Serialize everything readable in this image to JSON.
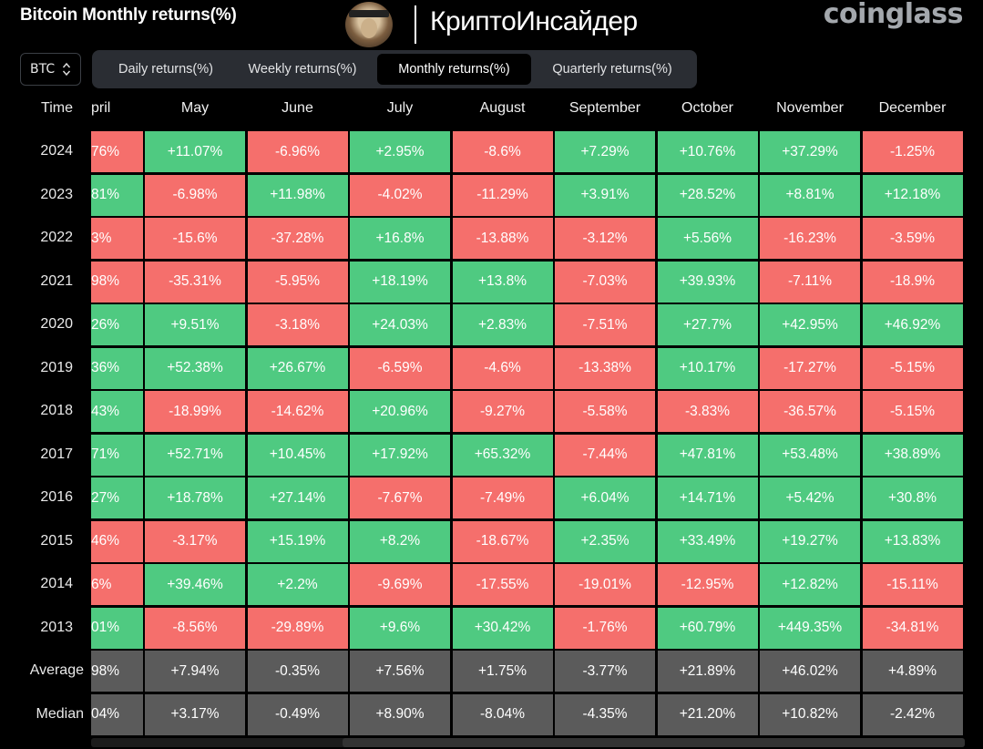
{
  "header": {
    "title": "Bitcoin Monthly returns(%)",
    "brand_name": "КриптоИнсайдер",
    "avatar_text": "КриптоИнсайдер",
    "logo": "coinglass"
  },
  "symbol": {
    "value": "BTC",
    "icon": "chevron-updown-icon"
  },
  "tabs": [
    {
      "label": "Daily returns(%)",
      "active": false
    },
    {
      "label": "Weekly returns(%)",
      "active": false
    },
    {
      "label": "Monthly returns(%)",
      "active": true
    },
    {
      "label": "Quarterly returns(%)",
      "active": false
    }
  ],
  "time_header": "Time",
  "columns": [
    "pril",
    "May",
    "June",
    "July",
    "August",
    "September",
    "October",
    "November",
    "December"
  ],
  "rows": [
    {
      "label": "2024",
      "values": [
        "76%",
        "+11.07%",
        "-6.96%",
        "+2.95%",
        "-8.6%",
        "+7.29%",
        "+10.76%",
        "+37.29%",
        "-1.25%"
      ],
      "tone": [
        "neg",
        "pos",
        "neg",
        "pos",
        "neg",
        "pos",
        "pos",
        "pos",
        "neg"
      ]
    },
    {
      "label": "2023",
      "values": [
        "81%",
        "-6.98%",
        "+11.98%",
        "-4.02%",
        "-11.29%",
        "+3.91%",
        "+28.52%",
        "+8.81%",
        "+12.18%"
      ],
      "tone": [
        "pos",
        "neg",
        "pos",
        "neg",
        "neg",
        "pos",
        "pos",
        "pos",
        "pos"
      ]
    },
    {
      "label": "2022",
      "values": "3%|-15.6%|-37.28%|+16.8%|-13.88%|-3.12%|+5.56%|-16.23%|-3.59%",
      "tone": [
        "neg",
        "neg",
        "neg",
        "pos",
        "neg",
        "neg",
        "pos",
        "neg",
        "neg"
      ]
    },
    {
      "label": "2021",
      "values": [
        "98%",
        "-35.31%",
        "-5.95%",
        "+18.19%",
        "+13.8%",
        "-7.03%",
        "+39.93%",
        "-7.11%",
        "-18.9%"
      ],
      "tone": [
        "neg",
        "neg",
        "neg",
        "pos",
        "pos",
        "neg",
        "pos",
        "neg",
        "neg"
      ]
    },
    {
      "label": "2020",
      "values": [
        "26%",
        "+9.51%",
        "-3.18%",
        "+24.03%",
        "+2.83%",
        "-7.51%",
        "+27.7%",
        "+42.95%",
        "+46.92%"
      ],
      "tone": [
        "pos",
        "pos",
        "neg",
        "pos",
        "pos",
        "neg",
        "pos",
        "pos",
        "pos"
      ]
    },
    {
      "label": "2019",
      "values": [
        "36%",
        "+52.38%",
        "+26.67%",
        "-6.59%",
        "-4.6%",
        "-13.38%",
        "+10.17%",
        "-17.27%",
        "-5.15%"
      ],
      "tone": [
        "pos",
        "pos",
        "pos",
        "neg",
        "neg",
        "neg",
        "pos",
        "neg",
        "neg"
      ]
    },
    {
      "label": "2018",
      "values": [
        "43%",
        "-18.99%",
        "-14.62%",
        "+20.96%",
        "-9.27%",
        "-5.58%",
        "-3.83%",
        "-36.57%",
        "-5.15%"
      ],
      "tone": [
        "pos",
        "neg",
        "neg",
        "pos",
        "neg",
        "neg",
        "neg",
        "neg",
        "neg"
      ]
    },
    {
      "label": "2017",
      "values": [
        "71%",
        "+52.71%",
        "+10.45%",
        "+17.92%",
        "+65.32%",
        "-7.44%",
        "+47.81%",
        "+53.48%",
        "+38.89%"
      ],
      "tone": [
        "pos",
        "pos",
        "pos",
        "pos",
        "pos",
        "neg",
        "pos",
        "pos",
        "pos"
      ]
    },
    {
      "label": "2016",
      "values": [
        "27%",
        "+18.78%",
        "+27.14%",
        "-7.67%",
        "-7.49%",
        "+6.04%",
        "+14.71%",
        "+5.42%",
        "+30.8%"
      ],
      "tone": [
        "pos",
        "pos",
        "pos",
        "neg",
        "neg",
        "pos",
        "pos",
        "pos",
        "pos"
      ]
    },
    {
      "label": "2015",
      "values": [
        "46%",
        "-3.17%",
        "+15.19%",
        "+8.2%",
        "-18.67%",
        "+2.35%",
        "+33.49%",
        "+19.27%",
        "+13.83%"
      ],
      "tone": [
        "neg",
        "neg",
        "pos",
        "pos",
        "neg",
        "pos",
        "pos",
        "pos",
        "pos"
      ]
    },
    {
      "label": "2014",
      "values": [
        "6%",
        "+39.46%",
        "+2.2%",
        "-9.69%",
        "-17.55%",
        "-19.01%",
        "-12.95%",
        "+12.82%",
        "-15.11%"
      ],
      "tone": [
        "neg",
        "pos",
        "pos",
        "neg",
        "neg",
        "neg",
        "neg",
        "pos",
        "neg"
      ]
    },
    {
      "label": "2013",
      "values": [
        "01%",
        "-8.56%",
        "-29.89%",
        "+9.6%",
        "+30.42%",
        "-1.76%",
        "+60.79%",
        "+449.35%",
        "-34.81%"
      ],
      "tone": [
        "pos",
        "neg",
        "neg",
        "pos",
        "pos",
        "neg",
        "pos",
        "pos",
        "neg"
      ]
    },
    {
      "label": "Average",
      "values": [
        "98%",
        "+7.94%",
        "-0.35%",
        "+7.56%",
        "+1.75%",
        "-3.77%",
        "+21.89%",
        "+46.02%",
        "+4.89%"
      ],
      "tone": [
        "stat",
        "stat",
        "stat",
        "stat",
        "stat",
        "stat",
        "stat",
        "stat",
        "stat"
      ]
    },
    {
      "label": "Median",
      "values": [
        "04%",
        "+3.17%",
        "-0.49%",
        "+8.90%",
        "-8.04%",
        "-4.35%",
        "+21.20%",
        "+10.82%",
        "-2.42%"
      ],
      "tone": [
        "stat",
        "stat",
        "stat",
        "stat",
        "stat",
        "stat",
        "stat",
        "stat",
        "stat"
      ]
    }
  ],
  "colors": {
    "positive": "#4fca81",
    "negative": "#f56f6c",
    "stat": "#5b5b5b",
    "background": "#000000"
  }
}
